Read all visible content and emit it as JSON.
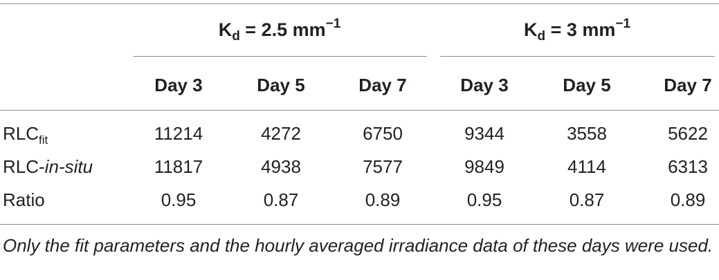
{
  "table": {
    "groups": [
      {
        "prefix": "K",
        "sub": "d",
        "rest": " = 2.5 mm",
        "sup": "−1"
      },
      {
        "prefix": "K",
        "sub": "d",
        "rest": " = 3 mm",
        "sup": "−1"
      }
    ],
    "columns": [
      "Day 3",
      "Day 5",
      "Day 7",
      "Day 3",
      "Day 5",
      "Day 7"
    ],
    "rows": [
      {
        "label_main": "RLC",
        "label_sub": "fit",
        "values": [
          "11214",
          "4272",
          "6750",
          "9344",
          "3558",
          "5622"
        ]
      },
      {
        "label_main": "RLC-",
        "label_italic": "in-situ",
        "values": [
          "11817",
          "4938",
          "7577",
          "9849",
          "4114",
          "6313"
        ]
      },
      {
        "label_main": "Ratio",
        "values": [
          "0.95",
          "0.87",
          "0.89",
          "0.95",
          "0.87",
          "0.89"
        ]
      }
    ]
  },
  "footnote": "Only the fit parameters and the hourly averaged irradiance data of these days were used."
}
